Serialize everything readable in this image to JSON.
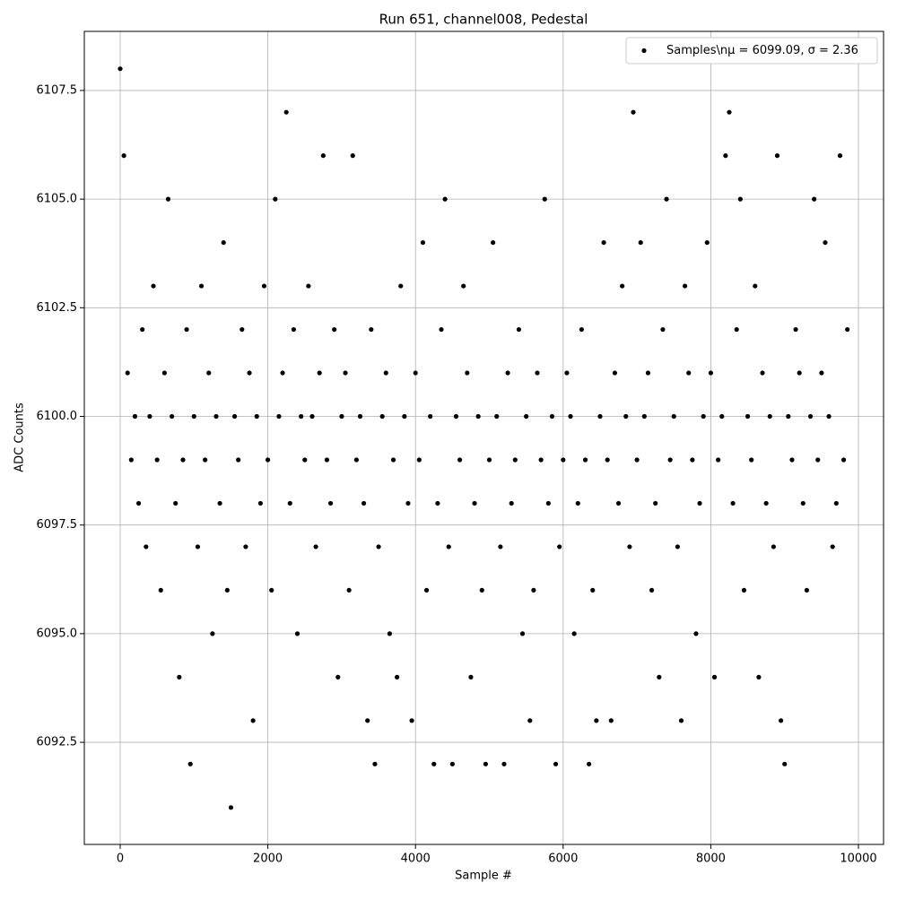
{
  "chart_data": {
    "type": "scatter",
    "title": "Run 651, channel008, Pedestal",
    "xlabel": "Sample #",
    "ylabel": "ADC Counts",
    "x": [
      0,
      50,
      100,
      150,
      200,
      250,
      300,
      350,
      400,
      450,
      500,
      550,
      600,
      650,
      700,
      750,
      800,
      850,
      900,
      950,
      1000,
      1050,
      1100,
      1150,
      1200,
      1250,
      1300,
      1350,
      1400,
      1450,
      1500,
      1550,
      1600,
      1650,
      1700,
      1750,
      1800,
      1850,
      1900,
      1950,
      2000,
      2050,
      2100,
      2150,
      2200,
      2250,
      2300,
      2350,
      2400,
      2450,
      2500,
      2550,
      2600,
      2650,
      2700,
      2750,
      2800,
      2850,
      2900,
      2950,
      3000,
      3050,
      3100,
      3150,
      3200,
      3250,
      3300,
      3350,
      3400,
      3450,
      3500,
      3550,
      3600,
      3650,
      3700,
      3750,
      3800,
      3850,
      3900,
      3950,
      4000,
      4050,
      4100,
      4150,
      4200,
      4250,
      4300,
      4350,
      4400,
      4450,
      4500,
      4550,
      4600,
      4650,
      4700,
      4750,
      4800,
      4850,
      4900,
      4950,
      5000,
      5050,
      5100,
      5150,
      5200,
      5250,
      5300,
      5350,
      5400,
      5450,
      5500,
      5550,
      5600,
      5650,
      5700,
      5750,
      5800,
      5850,
      5900,
      5950,
      6000,
      6050,
      6100,
      6150,
      6200,
      6250,
      6300,
      6350,
      6400,
      6450,
      6500,
      6550,
      6600,
      6650,
      6700,
      6750,
      6800,
      6850,
      6900,
      6950,
      7000,
      7050,
      7100,
      7150,
      7200,
      7250,
      7300,
      7350,
      7400,
      7450,
      7500,
      7550,
      7600,
      7650,
      7700,
      7750,
      7800,
      7850,
      7900,
      7950,
      8000,
      8050,
      8100,
      8150,
      8200,
      8250,
      8300,
      8350,
      8400,
      8450,
      8500,
      8550,
      8600,
      8650,
      8700,
      8750,
      8800,
      8850,
      8900,
      8950,
      9000,
      9050,
      9100,
      9150,
      9200,
      9250,
      9300,
      9350,
      9400,
      9450,
      9500,
      9550,
      9600,
      9650,
      9700,
      9750,
      9800,
      9850
    ],
    "series": [
      {
        "name": "Samples\\nμ = 6099.09, σ = 2.36",
        "color": "#000000",
        "values": [
          6108,
          6106,
          6101,
          6099,
          6100,
          6098,
          6102,
          6097,
          6100,
          6103,
          6099,
          6096,
          6101,
          6105,
          6100,
          6098,
          6094,
          6099,
          6102,
          6092,
          6100,
          6097,
          6103,
          6099,
          6101,
          6095,
          6100,
          6098,
          6104,
          6096,
          6091,
          6100,
          6099,
          6102,
          6097,
          6101,
          6093,
          6100,
          6098,
          6103,
          6099,
          6096,
          6105,
          6100,
          6101,
          6107,
          6098,
          6102,
          6095,
          6100,
          6099,
          6103,
          6100,
          6097,
          6101,
          6106,
          6099,
          6098,
          6102,
          6094,
          6100,
          6101,
          6096,
          6106,
          6099,
          6100,
          6098,
          6093,
          6102,
          6092,
          6097,
          6100,
          6101,
          6095,
          6099,
          6094,
          6103,
          6100,
          6098,
          6093,
          6101,
          6099,
          6104,
          6096,
          6100,
          6092,
          6098,
          6102,
          6105,
          6097,
          6092,
          6100,
          6099,
          6103,
          6101,
          6094,
          6098,
          6100,
          6096,
          6092,
          6099,
          6104,
          6100,
          6097,
          6092,
          6101,
          6098,
          6099,
          6102,
          6095,
          6100,
          6093,
          6096,
          6101,
          6099,
          6105,
          6098,
          6100,
          6092,
          6097,
          6099,
          6101,
          6100,
          6095,
          6098,
          6102,
          6099,
          6092,
          6096,
          6093,
          6100,
          6104,
          6099,
          6093,
          6101,
          6098,
          6103,
          6100,
          6097,
          6107,
          6099,
          6104,
          6100,
          6101,
          6096,
          6098,
          6094,
          6102,
          6105,
          6099,
          6100,
          6097,
          6093,
          6103,
          6101,
          6099,
          6095,
          6098,
          6100,
          6104,
          6101,
          6094,
          6099,
          6100,
          6106,
          6107,
          6098,
          6102,
          6105,
          6096,
          6100,
          6099,
          6103,
          6094,
          6101,
          6098,
          6100,
          6097,
          6106,
          6093,
          6092,
          6100,
          6099,
          6102,
          6101,
          6098,
          6096,
          6100,
          6105,
          6099,
          6101,
          6104,
          6100,
          6097,
          6098,
          6106,
          6099,
          6102
        ]
      }
    ],
    "xlim": [
      -486,
      10340
    ],
    "ylim": [
      6090.15,
      6108.86
    ],
    "xticks": [
      0,
      2000,
      4000,
      6000,
      8000,
      10000
    ],
    "yticks": [
      6092.5,
      {
        "value": 6095,
        "label": "6095.0"
      },
      6097.5,
      {
        "value": 6100,
        "label": "6100.0"
      },
      6102.5,
      {
        "value": 6105,
        "label": "6105.0"
      },
      6107.5
    ],
    "grid": true,
    "legend": "upper right"
  }
}
